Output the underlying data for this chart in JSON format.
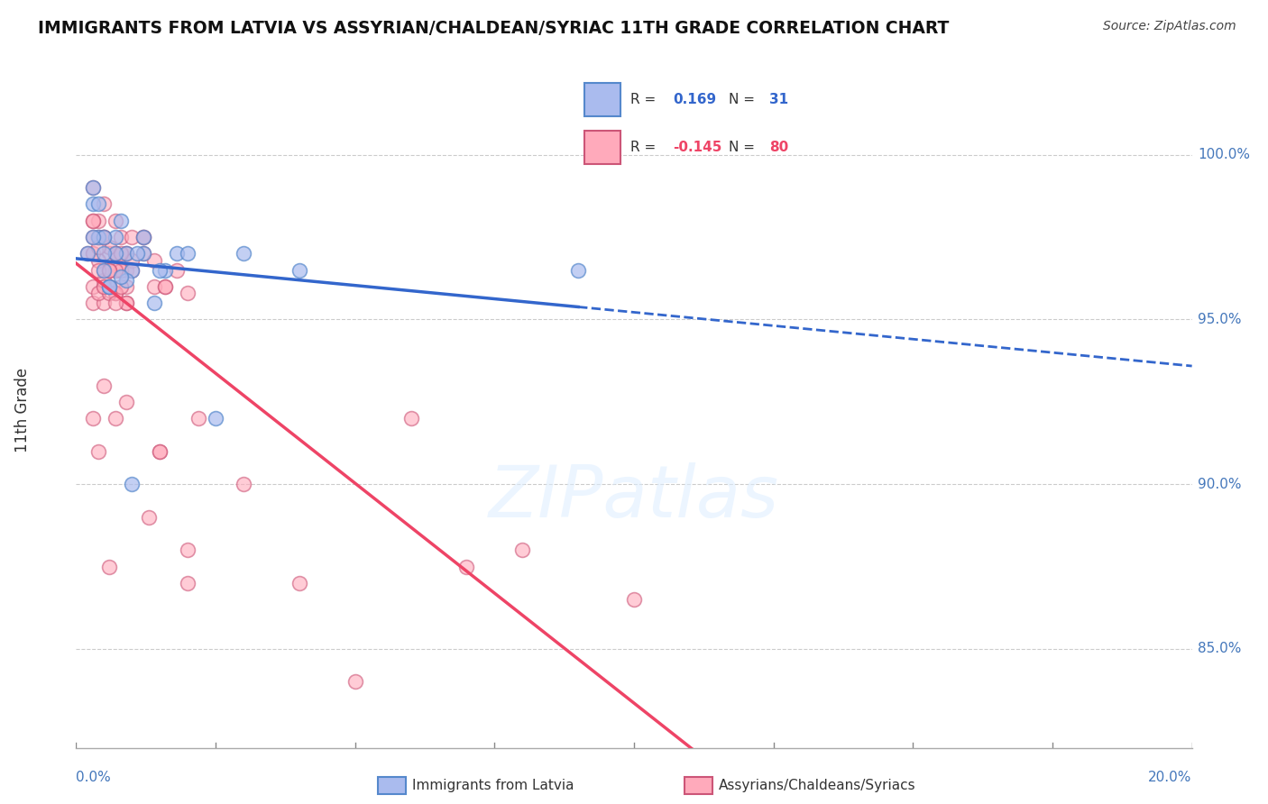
{
  "title": "IMMIGRANTS FROM LATVIA VS ASSYRIAN/CHALDEAN/SYRIAC 11TH GRADE CORRELATION CHART",
  "source": "Source: ZipAtlas.com",
  "ylabel": "11th Grade",
  "ytick_labels": [
    "85.0%",
    "90.0%",
    "95.0%",
    "100.0%"
  ],
  "ytick_values": [
    0.85,
    0.9,
    0.95,
    1.0
  ],
  "xlim": [
    0.0,
    0.2
  ],
  "ylim": [
    0.82,
    1.025
  ],
  "blue_color": "#AABBEE",
  "blue_edge_color": "#5588CC",
  "pink_color": "#FFAABB",
  "pink_edge_color": "#CC5577",
  "blue_line_color": "#3366CC",
  "pink_line_color": "#EE4466",
  "watermark": "ZIPatlas",
  "blue_scatter_x": [
    0.002,
    0.003,
    0.004,
    0.005,
    0.006,
    0.007,
    0.008,
    0.009,
    0.01,
    0.012,
    0.014,
    0.016,
    0.018,
    0.003,
    0.005,
    0.007,
    0.009,
    0.011,
    0.004,
    0.006,
    0.008,
    0.012,
    0.003,
    0.005,
    0.02,
    0.025,
    0.03,
    0.04,
    0.09,
    0.01,
    0.015
  ],
  "blue_scatter_y": [
    0.97,
    0.985,
    0.975,
    0.965,
    0.96,
    0.975,
    0.98,
    0.97,
    0.965,
    0.97,
    0.955,
    0.965,
    0.97,
    0.99,
    0.975,
    0.97,
    0.962,
    0.97,
    0.985,
    0.96,
    0.963,
    0.975,
    0.975,
    0.97,
    0.97,
    0.92,
    0.97,
    0.965,
    0.965,
    0.9,
    0.965
  ],
  "pink_scatter_x": [
    0.002,
    0.003,
    0.004,
    0.005,
    0.006,
    0.007,
    0.008,
    0.009,
    0.01,
    0.012,
    0.003,
    0.005,
    0.007,
    0.009,
    0.003,
    0.005,
    0.007,
    0.004,
    0.006,
    0.008,
    0.003,
    0.005,
    0.003,
    0.005,
    0.007,
    0.004,
    0.006,
    0.008,
    0.009,
    0.01,
    0.012,
    0.014,
    0.005,
    0.007,
    0.009,
    0.006,
    0.004,
    0.003,
    0.005,
    0.007,
    0.009,
    0.008,
    0.006,
    0.004,
    0.003,
    0.005,
    0.01,
    0.012,
    0.014,
    0.016,
    0.007,
    0.009,
    0.008,
    0.006,
    0.004,
    0.005,
    0.006,
    0.007,
    0.003,
    0.004,
    0.006,
    0.005,
    0.007,
    0.009,
    0.04,
    0.02,
    0.03,
    0.05,
    0.1,
    0.06,
    0.08,
    0.02,
    0.015,
    0.07,
    0.016,
    0.018,
    0.02,
    0.022,
    0.015,
    0.013
  ],
  "pink_scatter_y": [
    0.97,
    0.975,
    0.98,
    0.975,
    0.97,
    0.98,
    0.975,
    0.97,
    0.975,
    0.975,
    0.96,
    0.965,
    0.97,
    0.965,
    0.99,
    0.985,
    0.97,
    0.975,
    0.96,
    0.965,
    0.955,
    0.96,
    0.98,
    0.975,
    0.97,
    0.968,
    0.96,
    0.965,
    0.97,
    0.968,
    0.975,
    0.96,
    0.955,
    0.965,
    0.955,
    0.972,
    0.958,
    0.97,
    0.962,
    0.958,
    0.96,
    0.97,
    0.965,
    0.972,
    0.98,
    0.975,
    0.965,
    0.97,
    0.968,
    0.96,
    0.958,
    0.955,
    0.96,
    0.958,
    0.965,
    0.96,
    0.965,
    0.955,
    0.92,
    0.91,
    0.875,
    0.93,
    0.92,
    0.925,
    0.87,
    0.88,
    0.9,
    0.84,
    0.865,
    0.92,
    0.88,
    0.87,
    0.91,
    0.875,
    0.96,
    0.965,
    0.958,
    0.92,
    0.91,
    0.89
  ],
  "legend_entries": [
    {
      "r": "0.169",
      "n": "31",
      "r_sign": "+"
    },
    {
      "r": "-0.145",
      "n": "80",
      "r_sign": "-"
    }
  ]
}
